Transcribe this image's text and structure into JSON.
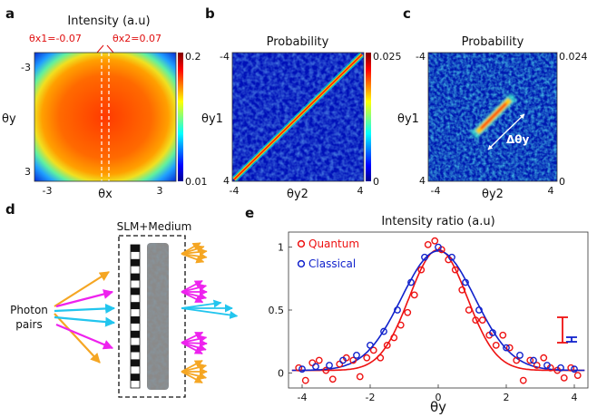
{
  "panel_letters": [
    "a",
    "b",
    "c",
    "d",
    "e"
  ],
  "panel_a": {
    "title": "Intensity (a.u)",
    "theta_x1": "θx1=-0.07",
    "theta_x2": "θx2=0.07",
    "xlabel": "θx",
    "ylabel": "θy",
    "xticks": [
      "-3",
      "3"
    ],
    "yticks": [
      "-3",
      "3"
    ],
    "cbar_max": "0.2",
    "cbar_min": "0.01"
  },
  "panel_b": {
    "title": "Probability",
    "xlabel": "θy2",
    "ylabel": "θy1",
    "xticks": [
      "-4",
      "4"
    ],
    "yticks": [
      "-4",
      "4"
    ],
    "cbar_max": "0.025",
    "cbar_min": "0"
  },
  "panel_c": {
    "title": "Probability",
    "xlabel": "θy2",
    "ylabel": "θy1",
    "xticks": [
      "-4",
      "4"
    ],
    "yticks": [
      "-4",
      "4"
    ],
    "cbar_max": "0.024",
    "cbar_min": "0",
    "annotation": "Δθy"
  },
  "panel_d": {
    "medium_label": "SLM+Medium",
    "source_label_1": "Photon",
    "source_label_2": "pairs",
    "colors": {
      "orange": "#f5a623",
      "cyan": "#22c5ee",
      "magenta": "#ee22ee"
    }
  },
  "chart_data": {
    "type": "scatter",
    "title": "Intensity ratio (a.u)",
    "xlabel": "θy",
    "ylabel": "",
    "xlim": [
      -4.4,
      4.4
    ],
    "ylim": [
      -0.12,
      1.12
    ],
    "xticks": [
      -4,
      -2,
      0,
      2,
      4
    ],
    "yticks": [
      0,
      0.5,
      1
    ],
    "legend_position": "top-left",
    "series": [
      {
        "name": "Quantum",
        "color": "#ee1111",
        "x": [
          -4.1,
          -3.9,
          -3.7,
          -3.5,
          -3.3,
          -3.1,
          -2.9,
          -2.7,
          -2.5,
          -2.3,
          -2.1,
          -1.9,
          -1.7,
          -1.5,
          -1.3,
          -1.1,
          -0.9,
          -0.7,
          -0.5,
          -0.3,
          -0.1,
          0.1,
          0.3,
          0.5,
          0.7,
          0.9,
          1.1,
          1.3,
          1.5,
          1.7,
          1.9,
          2.1,
          2.3,
          2.5,
          2.7,
          2.9,
          3.1,
          3.3,
          3.5,
          3.7,
          3.9,
          4.1
        ],
        "y": [
          0.04,
          -0.06,
          0.08,
          0.1,
          0.02,
          -0.05,
          0.07,
          0.12,
          0.1,
          -0.03,
          0.12,
          0.18,
          0.12,
          0.22,
          0.28,
          0.38,
          0.48,
          0.62,
          0.82,
          1.02,
          1.05,
          0.98,
          0.9,
          0.82,
          0.66,
          0.5,
          0.42,
          0.42,
          0.3,
          0.22,
          0.3,
          0.2,
          0.1,
          -0.06,
          0.1,
          0.06,
          0.12,
          0.04,
          0.02,
          -0.04,
          0.04,
          -0.02
        ]
      },
      {
        "name": "Classical",
        "color": "#1122cc",
        "x": [
          -4,
          -3.6,
          -3.2,
          -2.8,
          -2.4,
          -2.0,
          -1.6,
          -1.2,
          -0.8,
          -0.4,
          0,
          0.4,
          0.8,
          1.2,
          1.6,
          2.0,
          2.4,
          2.8,
          3.2,
          3.6,
          4.0
        ],
        "y": [
          0.03,
          0.05,
          0.06,
          0.1,
          0.14,
          0.22,
          0.33,
          0.5,
          0.72,
          0.92,
          1.0,
          0.92,
          0.72,
          0.5,
          0.32,
          0.2,
          0.14,
          0.1,
          0.06,
          0.04,
          0.03
        ]
      }
    ],
    "fits": [
      {
        "color": "#ee1111",
        "amp": 0.96,
        "sigma": 0.85,
        "offset": 0.02
      },
      {
        "color": "#1122cc",
        "amp": 0.95,
        "sigma": 1.08,
        "offset": 0.02
      }
    ]
  }
}
